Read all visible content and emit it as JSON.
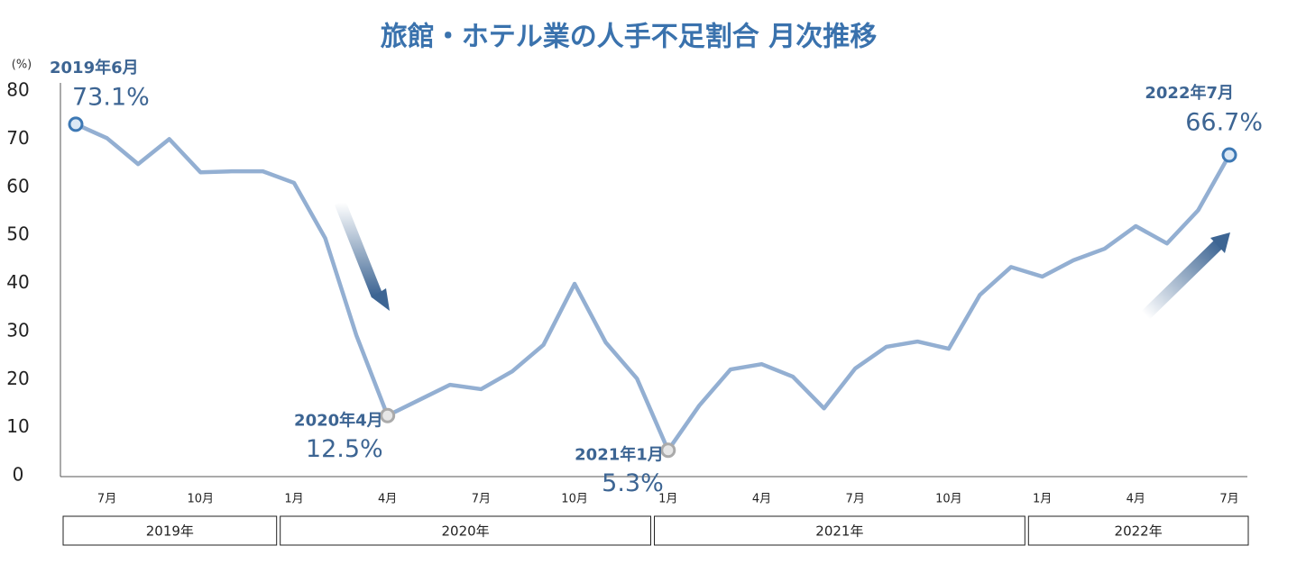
{
  "chart_data": {
    "type": "line",
    "title": "旅館・ホテル業の人手不足割合 月次推移",
    "y_unit": "(%)",
    "categories": [
      null,
      "7月",
      null,
      null,
      "10月",
      null,
      null,
      "1月",
      null,
      null,
      "4月",
      null,
      null,
      "7月",
      null,
      null,
      "10月",
      null,
      null,
      "1月",
      null,
      null,
      "4月",
      null,
      null,
      "7月",
      null,
      null,
      "10月",
      null,
      null,
      "1月",
      null,
      null,
      "4月",
      null,
      null,
      "7月"
    ],
    "year_groups": [
      "2019年",
      "2020年",
      "2021年",
      "2022年"
    ],
    "series": [
      {
        "color": "#93afd2",
        "values": [
          73.1,
          70.2,
          64.8,
          70.0,
          63.1,
          63.3,
          63.3,
          60.9,
          49.4,
          29.2,
          12.5,
          15.7,
          18.9,
          18.0,
          21.7,
          27.2,
          39.9,
          27.7,
          20.2,
          5.3,
          14.6,
          22.1,
          23.2,
          20.6,
          14.0,
          22.3,
          26.8,
          27.9,
          26.4,
          37.6,
          43.4,
          41.4,
          44.8,
          47.2,
          51.9,
          48.3,
          55.2,
          66.7
        ],
        "value_labels": [
          "73.1%",
          null,
          null,
          null,
          null,
          null,
          null,
          null,
          null,
          null,
          "12.5%",
          null,
          null,
          null,
          null,
          null,
          null,
          null,
          null,
          "5.3%",
          null,
          null,
          null,
          null,
          null,
          null,
          null,
          null,
          null,
          null,
          null,
          null,
          null,
          null,
          null,
          null,
          null,
          "66.7%"
        ],
        "point_labels": [
          "2019年6月",
          null,
          null,
          null,
          null,
          null,
          null,
          null,
          null,
          null,
          "2020年4月",
          null,
          null,
          null,
          null,
          null,
          null,
          null,
          null,
          "2021年1月",
          null,
          null,
          null,
          null,
          null,
          null,
          null,
          null,
          null,
          null,
          null,
          null,
          null,
          null,
          null,
          null,
          null,
          "2022年7月"
        ]
      }
    ],
    "ylim": [
      0,
      80
    ],
    "yticks": [
      0,
      10,
      20,
      30,
      40,
      50,
      60,
      70,
      80
    ],
    "grid": false,
    "label_color": "#3d6593",
    "title_color": "#3a72ad"
  }
}
